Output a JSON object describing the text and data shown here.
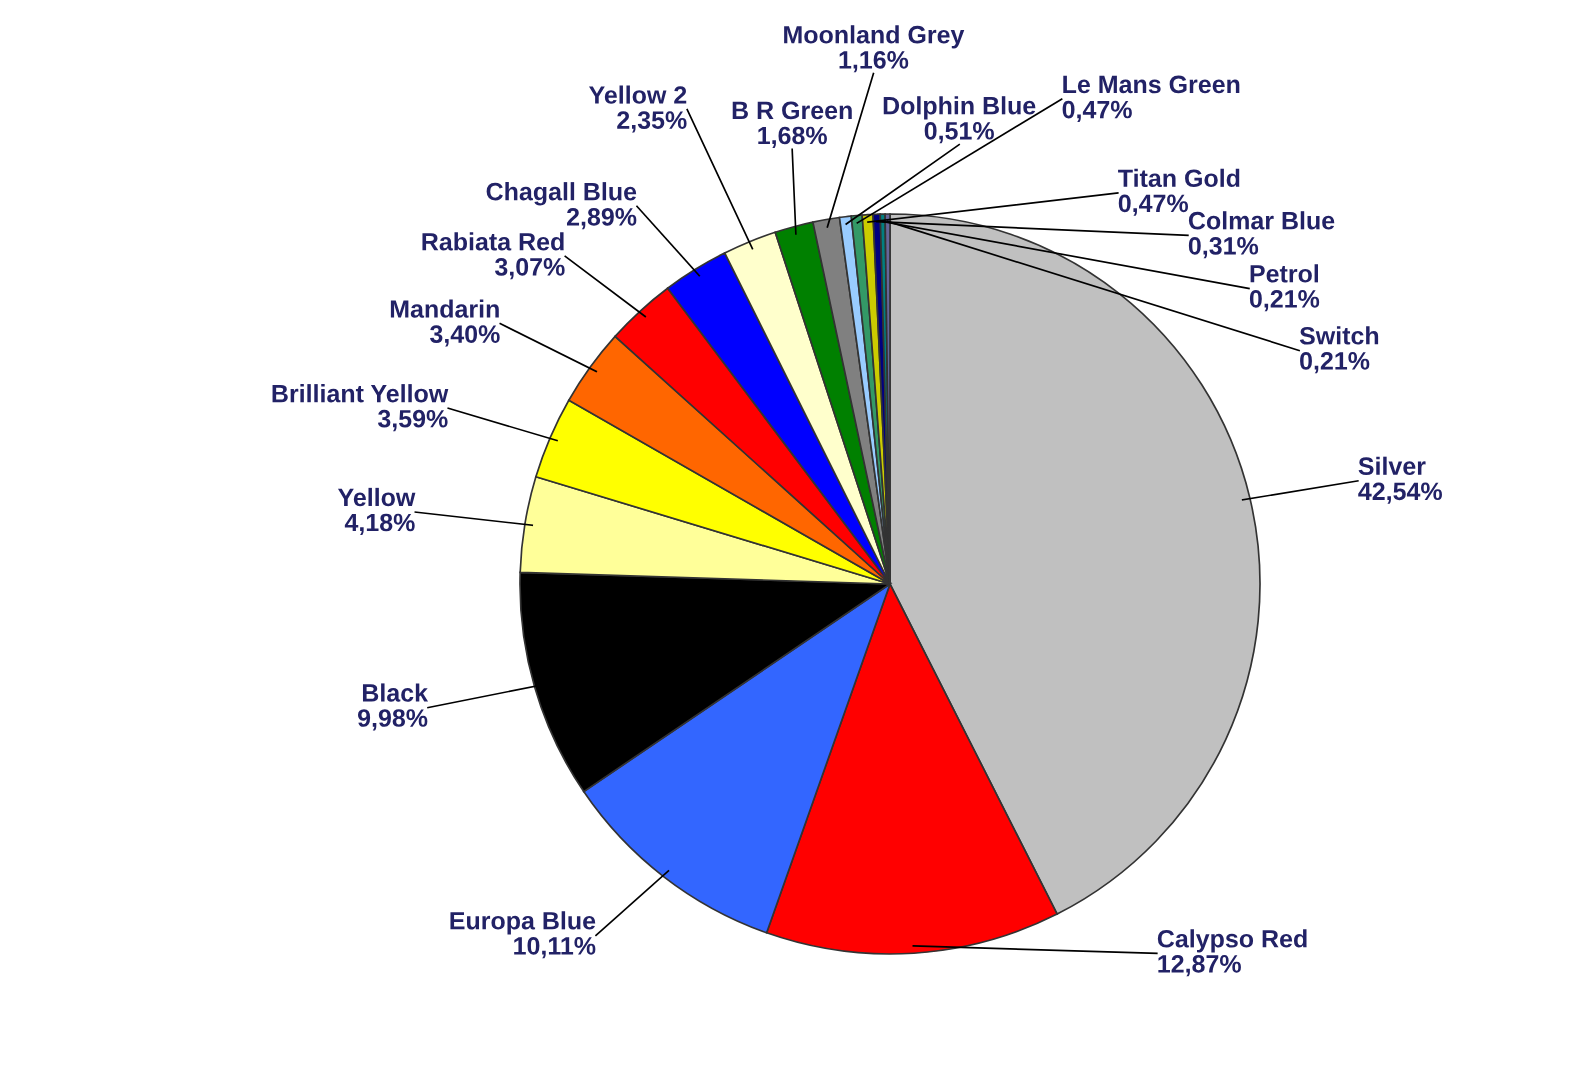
{
  "chart_data": {
    "type": "pie",
    "categories": [
      "Silver",
      "Calypso Red",
      "Europa Blue",
      "Black",
      "Yellow",
      "Brilliant Yellow",
      "Mandarin",
      "Rabiata Red",
      "Chagall Blue",
      "Yellow 2",
      "B R Green",
      "Moonland Grey",
      "Dolphin Blue",
      "Le Mans Green",
      "Titan Gold",
      "Colmar Blue",
      "Petrol",
      "Switch"
    ],
    "values": [
      42.54,
      12.87,
      10.11,
      9.98,
      4.18,
      3.59,
      3.4,
      3.07,
      2.89,
      2.35,
      1.68,
      1.16,
      0.51,
      0.47,
      0.47,
      0.31,
      0.21,
      0.21
    ],
    "value_labels": [
      "42,54%",
      "12,87%",
      "10,11%",
      "9,98%",
      "4,18%",
      "3,59%",
      "3,40%",
      "3,07%",
      "2,89%",
      "2,35%",
      "1,68%",
      "1,16%",
      "0,51%",
      "0,47%",
      "0,47%",
      "0,31%",
      "0,21%",
      "0,21%"
    ],
    "colors": [
      "#c0c0c0",
      "#ff0000",
      "#3366ff",
      "#000000",
      "#ffff99",
      "#ffff00",
      "#ff6600",
      "#ff0000",
      "#0000ff",
      "#ffffcc",
      "#008000",
      "#808080",
      "#99ccff",
      "#339966",
      "#cccc00",
      "#000080",
      "#008080",
      "#666699"
    ],
    "legend": false
  }
}
